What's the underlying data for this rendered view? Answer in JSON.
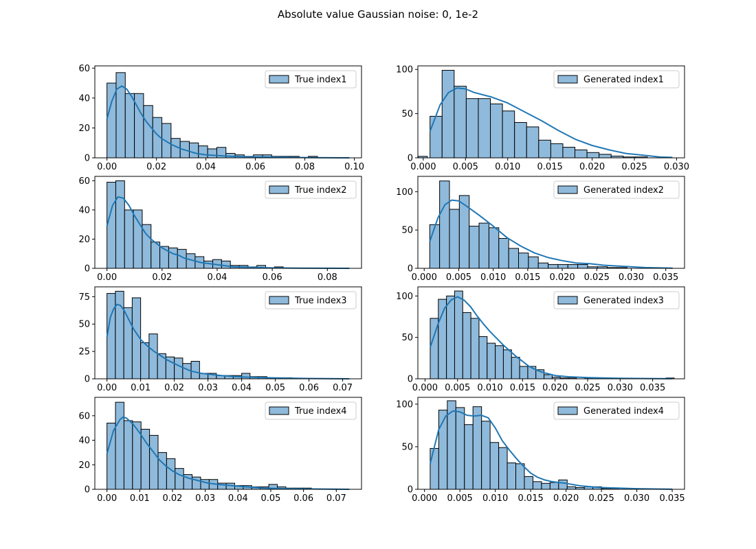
{
  "figure_title": "Absolute value Gaussian noise: 0, 1e-2",
  "colors": {
    "bar_fill": "#8fbadb",
    "bar_edge": "#000000",
    "kde_line": "#1f77b4"
  },
  "chart_data": [
    {
      "type": "bar",
      "subtype": "histogram-with-kde",
      "legend": "True index1",
      "legend_loc": "upper right",
      "bin_start": 0.0,
      "bin_width": 0.0037,
      "values": [
        50,
        57,
        43,
        43,
        35,
        27,
        23,
        13,
        11,
        10,
        8,
        6,
        7,
        3,
        2,
        1,
        2,
        2,
        1,
        1,
        1,
        0,
        1,
        0,
        0,
        0,
        0,
        0,
        0,
        0,
        0,
        0,
        0,
        0,
        1,
        0,
        0,
        0,
        0,
        0,
        0,
        0,
        0,
        0,
        0,
        0,
        0,
        0,
        0,
        1
      ],
      "kde": [
        [
          0,
          26
        ],
        [
          0.002,
          38
        ],
        [
          0.004,
          46
        ],
        [
          0.006,
          48
        ],
        [
          0.008,
          46
        ],
        [
          0.01,
          41
        ],
        [
          0.012,
          35
        ],
        [
          0.014,
          29
        ],
        [
          0.016,
          24
        ],
        [
          0.018,
          20
        ],
        [
          0.02,
          16
        ],
        [
          0.022,
          13
        ],
        [
          0.024,
          11
        ],
        [
          0.026,
          9
        ],
        [
          0.028,
          7.5
        ],
        [
          0.03,
          6
        ],
        [
          0.032,
          5
        ],
        [
          0.034,
          4
        ],
        [
          0.036,
          3
        ],
        [
          0.04,
          2
        ],
        [
          0.045,
          1.5
        ],
        [
          0.05,
          1
        ],
        [
          0.06,
          0.6
        ],
        [
          0.07,
          0.5
        ],
        [
          0.08,
          0.2
        ],
        [
          0.098,
          0
        ]
      ],
      "xlim": [
        -0.0049,
        0.1029
      ],
      "ylim": [
        0,
        61.5
      ],
      "xticks": [
        0,
        0.02,
        0.04,
        0.06,
        0.08,
        0.1
      ],
      "xtick_labels": [
        "0.00",
        "0.02",
        "0.04",
        "0.06",
        "0.08",
        "0.10"
      ],
      "yticks": [
        0,
        20,
        40,
        60
      ],
      "ytick_labels": [
        "0",
        "20",
        "40",
        "60"
      ]
    },
    {
      "type": "bar",
      "subtype": "histogram-with-kde",
      "legend": "Generated index1",
      "legend_loc": "upper right",
      "bin_start": 0.0008,
      "bin_width": 0.00143,
      "values": [
        47,
        99,
        81,
        67,
        67,
        61,
        53,
        40,
        35,
        20,
        16,
        12,
        9,
        6,
        4,
        2,
        1,
        1,
        0,
        0
      ],
      "kde": [
        [
          0.0008,
          30
        ],
        [
          0.002,
          60
        ],
        [
          0.003,
          74
        ],
        [
          0.004,
          79
        ],
        [
          0.005,
          78
        ],
        [
          0.006,
          74
        ],
        [
          0.008,
          69
        ],
        [
          0.01,
          62
        ],
        [
          0.012,
          52
        ],
        [
          0.014,
          42
        ],
        [
          0.016,
          31
        ],
        [
          0.018,
          21
        ],
        [
          0.02,
          14
        ],
        [
          0.022,
          9
        ],
        [
          0.024,
          5
        ],
        [
          0.026,
          3
        ],
        [
          0.028,
          1
        ],
        [
          0.0295,
          0.5
        ]
      ],
      "xlim": [
        -0.00064,
        0.03094
      ],
      "ylim": [
        0,
        104
      ],
      "xticks": [
        0,
        0.005,
        0.01,
        0.015,
        0.02,
        0.025,
        0.03
      ],
      "xtick_labels": [
        "0.000",
        "0.005",
        "0.010",
        "0.015",
        "0.020",
        "0.025",
        "0.030"
      ],
      "yticks": [
        0,
        50,
        100
      ],
      "ytick_labels": [
        "0",
        "50",
        "100"
      ]
    },
    {
      "type": "bar",
      "subtype": "histogram-with-kde",
      "legend": "True index2",
      "legend_loc": "upper right",
      "bin_start": 0.0,
      "bin_width": 0.0032,
      "values": [
        59,
        60,
        40,
        40,
        30,
        18,
        15,
        14,
        13,
        10,
        8,
        5,
        6,
        5,
        2,
        2,
        1,
        2,
        0,
        1,
        0,
        0,
        0,
        0,
        0,
        0,
        0,
        0
      ],
      "kde": [
        [
          0,
          29
        ],
        [
          0.002,
          43
        ],
        [
          0.004,
          49
        ],
        [
          0.006,
          48
        ],
        [
          0.008,
          43
        ],
        [
          0.01,
          36
        ],
        [
          0.012,
          30
        ],
        [
          0.014,
          24
        ],
        [
          0.016,
          20
        ],
        [
          0.018,
          17
        ],
        [
          0.02,
          14
        ],
        [
          0.022,
          12
        ],
        [
          0.024,
          10
        ],
        [
          0.026,
          9
        ],
        [
          0.028,
          7
        ],
        [
          0.03,
          6
        ],
        [
          0.034,
          4
        ],
        [
          0.038,
          3
        ],
        [
          0.042,
          2
        ],
        [
          0.046,
          1
        ],
        [
          0.05,
          0.8
        ],
        [
          0.06,
          0.3
        ],
        [
          0.07,
          0.1
        ],
        [
          0.088,
          0
        ]
      ],
      "xlim": [
        -0.0044,
        0.0924
      ],
      "ylim": [
        0,
        63
      ],
      "xticks": [
        0,
        0.02,
        0.04,
        0.06,
        0.08
      ],
      "xtick_labels": [
        "0.00",
        "0.02",
        "0.04",
        "0.06",
        "0.08"
      ],
      "yticks": [
        0,
        20,
        40,
        60
      ],
      "ytick_labels": [
        "0",
        "20",
        "40",
        "60"
      ]
    },
    {
      "type": "bar",
      "subtype": "histogram-with-kde",
      "legend": "Generated index2",
      "legend_loc": "upper right",
      "bin_start": 0.0008,
      "bin_width": 0.00143,
      "values": [
        57,
        114,
        77,
        95,
        55,
        59,
        53,
        39,
        26,
        20,
        15,
        7,
        5,
        5,
        5,
        5,
        2,
        2,
        1,
        1,
        0,
        0,
        0,
        0,
        0
      ],
      "kde": [
        [
          0.0008,
          35
        ],
        [
          0.002,
          66
        ],
        [
          0.003,
          83
        ],
        [
          0.004,
          89
        ],
        [
          0.005,
          88
        ],
        [
          0.006,
          82
        ],
        [
          0.008,
          69
        ],
        [
          0.01,
          55
        ],
        [
          0.012,
          40
        ],
        [
          0.014,
          29
        ],
        [
          0.016,
          20
        ],
        [
          0.018,
          14
        ],
        [
          0.02,
          10
        ],
        [
          0.022,
          7
        ],
        [
          0.024,
          6
        ],
        [
          0.026,
          4
        ],
        [
          0.028,
          3
        ],
        [
          0.03,
          2
        ],
        [
          0.032,
          1
        ],
        [
          0.036,
          0.2
        ]
      ],
      "xlim": [
        -0.00092,
        0.03772
      ],
      "ylim": [
        0,
        120
      ],
      "xticks": [
        0,
        0.005,
        0.01,
        0.015,
        0.02,
        0.025,
        0.03,
        0.035
      ],
      "xtick_labels": [
        "0.000",
        "0.005",
        "0.010",
        "0.015",
        "0.020",
        "0.025",
        "0.030",
        "0.035"
      ],
      "yticks": [
        0,
        50,
        100
      ],
      "ytick_labels": [
        "0",
        "50",
        "100"
      ]
    },
    {
      "type": "bar",
      "subtype": "histogram-with-kde",
      "legend": "True index3",
      "legend_loc": "upper right",
      "bin_start": 0.0,
      "bin_width": 0.0025,
      "values": [
        78,
        80,
        65,
        74,
        33,
        41,
        23,
        20,
        19,
        14,
        16,
        5,
        5,
        3,
        3,
        3,
        5,
        2,
        2,
        1,
        1,
        1,
        0,
        0,
        0,
        0,
        0,
        0,
        0
      ],
      "kde": [
        [
          0,
          38
        ],
        [
          0.001,
          56
        ],
        [
          0.002,
          64
        ],
        [
          0.003,
          68
        ],
        [
          0.004,
          67
        ],
        [
          0.005,
          63
        ],
        [
          0.006,
          57
        ],
        [
          0.008,
          45
        ],
        [
          0.01,
          36
        ],
        [
          0.012,
          30
        ],
        [
          0.014,
          25
        ],
        [
          0.016,
          21
        ],
        [
          0.018,
          17
        ],
        [
          0.02,
          14
        ],
        [
          0.022,
          11
        ],
        [
          0.025,
          7
        ],
        [
          0.028,
          5
        ],
        [
          0.031,
          4
        ],
        [
          0.034,
          3
        ],
        [
          0.038,
          2
        ],
        [
          0.042,
          1.5
        ],
        [
          0.05,
          0.8
        ],
        [
          0.06,
          0.3
        ],
        [
          0.072,
          0
        ]
      ],
      "xlim": [
        -0.0036,
        0.0756
      ],
      "ylim": [
        0,
        84
      ],
      "xticks": [
        0,
        0.01,
        0.02,
        0.03,
        0.04,
        0.05,
        0.06,
        0.07
      ],
      "xtick_labels": [
        "0.00",
        "0.01",
        "0.02",
        "0.03",
        "0.04",
        "0.05",
        "0.06",
        "0.07"
      ],
      "yticks": [
        0,
        25,
        50,
        75
      ],
      "ytick_labels": [
        "0",
        "25",
        "50",
        "75"
      ]
    },
    {
      "type": "bar",
      "subtype": "histogram-with-kde",
      "legend": "Generated index3",
      "legend_loc": "upper right",
      "bin_start": 0.0008,
      "bin_width": 0.00125,
      "values": [
        73,
        96,
        100,
        106,
        80,
        73,
        51,
        43,
        40,
        35,
        26,
        15,
        15,
        11,
        5,
        2,
        1,
        1,
        0,
        1,
        0,
        0,
        0,
        0,
        0,
        0,
        0,
        0,
        0,
        1
      ],
      "kde": [
        [
          0.0008,
          38
        ],
        [
          0.002,
          66
        ],
        [
          0.003,
          85
        ],
        [
          0.004,
          95
        ],
        [
          0.005,
          99
        ],
        [
          0.006,
          95
        ],
        [
          0.007,
          87
        ],
        [
          0.008,
          76
        ],
        [
          0.009,
          66
        ],
        [
          0.01,
          57
        ],
        [
          0.011,
          49
        ],
        [
          0.012,
          41
        ],
        [
          0.013,
          34
        ],
        [
          0.014,
          27
        ],
        [
          0.015,
          21
        ],
        [
          0.016,
          15
        ],
        [
          0.017,
          11
        ],
        [
          0.018,
          8
        ],
        [
          0.02,
          4
        ],
        [
          0.022,
          2.5
        ],
        [
          0.025,
          1.5
        ],
        [
          0.03,
          0.6
        ],
        [
          0.038,
          0.1
        ]
      ],
      "xlim": [
        -0.0011,
        0.0399
      ],
      "ylim": [
        0,
        111
      ],
      "xticks": [
        0,
        0.005,
        0.01,
        0.015,
        0.02,
        0.025,
        0.03,
        0.035
      ],
      "xtick_labels": [
        "0.000",
        "0.005",
        "0.010",
        "0.015",
        "0.020",
        "0.025",
        "0.030",
        "0.035"
      ],
      "yticks": [
        0,
        50,
        100
      ],
      "ytick_labels": [
        "0",
        "50",
        "100"
      ]
    },
    {
      "type": "bar",
      "subtype": "histogram-with-kde",
      "legend": "True index4",
      "legend_loc": "upper right",
      "bin_start": 0.0,
      "bin_width": 0.0026,
      "values": [
        54,
        71,
        56,
        55,
        49,
        44,
        30,
        25,
        17,
        12,
        10,
        8,
        8,
        5,
        5,
        3,
        3,
        2,
        2,
        4,
        2,
        1,
        1,
        1,
        0,
        0,
        0,
        0,
        0
      ],
      "kde": [
        [
          0,
          29
        ],
        [
          0.002,
          48
        ],
        [
          0.004,
          57
        ],
        [
          0.005,
          59
        ],
        [
          0.006,
          58
        ],
        [
          0.008,
          53
        ],
        [
          0.01,
          46
        ],
        [
          0.012,
          38
        ],
        [
          0.014,
          31
        ],
        [
          0.016,
          24
        ],
        [
          0.018,
          19
        ],
        [
          0.02,
          15
        ],
        [
          0.022,
          12
        ],
        [
          0.025,
          9
        ],
        [
          0.028,
          7
        ],
        [
          0.031,
          5
        ],
        [
          0.034,
          4
        ],
        [
          0.038,
          3
        ],
        [
          0.042,
          2
        ],
        [
          0.048,
          1
        ],
        [
          0.055,
          0.5
        ],
        [
          0.065,
          0.2
        ],
        [
          0.074,
          0
        ]
      ],
      "xlim": [
        -0.0037,
        0.0777
      ],
      "ylim": [
        0,
        75
      ],
      "xticks": [
        0,
        0.01,
        0.02,
        0.03,
        0.04,
        0.05,
        0.06,
        0.07
      ],
      "xtick_labels": [
        "0.00",
        "0.01",
        "0.02",
        "0.03",
        "0.04",
        "0.05",
        "0.06",
        "0.07"
      ],
      "yticks": [
        0,
        20,
        40,
        60
      ],
      "ytick_labels": [
        "0",
        "20",
        "40",
        "60"
      ]
    },
    {
      "type": "bar",
      "subtype": "histogram-with-kde",
      "legend": "Generated index4",
      "legend_loc": "upper right",
      "bin_start": 0.0008,
      "bin_width": 0.00121,
      "values": [
        48,
        93,
        104,
        96,
        76,
        97,
        80,
        55,
        49,
        31,
        30,
        15,
        9,
        7,
        8,
        11,
        3,
        2,
        3,
        3,
        1,
        1,
        0,
        0,
        0,
        0,
        0,
        0
      ],
      "kde": [
        [
          0.0008,
          30
        ],
        [
          0.002,
          70
        ],
        [
          0.003,
          86
        ],
        [
          0.004,
          92
        ],
        [
          0.005,
          91
        ],
        [
          0.006,
          87
        ],
        [
          0.007,
          86
        ],
        [
          0.008,
          87
        ],
        [
          0.009,
          84
        ],
        [
          0.01,
          72
        ],
        [
          0.011,
          57
        ],
        [
          0.012,
          46
        ],
        [
          0.013,
          36
        ],
        [
          0.014,
          27
        ],
        [
          0.015,
          19
        ],
        [
          0.016,
          14
        ],
        [
          0.017,
          11
        ],
        [
          0.018,
          9
        ],
        [
          0.019,
          8
        ],
        [
          0.02,
          7
        ],
        [
          0.022,
          4
        ],
        [
          0.025,
          2
        ],
        [
          0.03,
          0.7
        ],
        [
          0.035,
          0.1
        ]
      ],
      "xlim": [
        -0.00094,
        0.03674
      ],
      "ylim": [
        0,
        108
      ],
      "xticks": [
        0,
        0.005,
        0.01,
        0.015,
        0.02,
        0.025,
        0.03,
        0.035
      ],
      "xtick_labels": [
        "0.000",
        "0.005",
        "0.010",
        "0.015",
        "0.020",
        "0.025",
        "0.030",
        "0.035"
      ],
      "yticks": [
        0,
        50,
        100
      ],
      "ytick_labels": [
        "0",
        "50",
        "100"
      ]
    }
  ]
}
